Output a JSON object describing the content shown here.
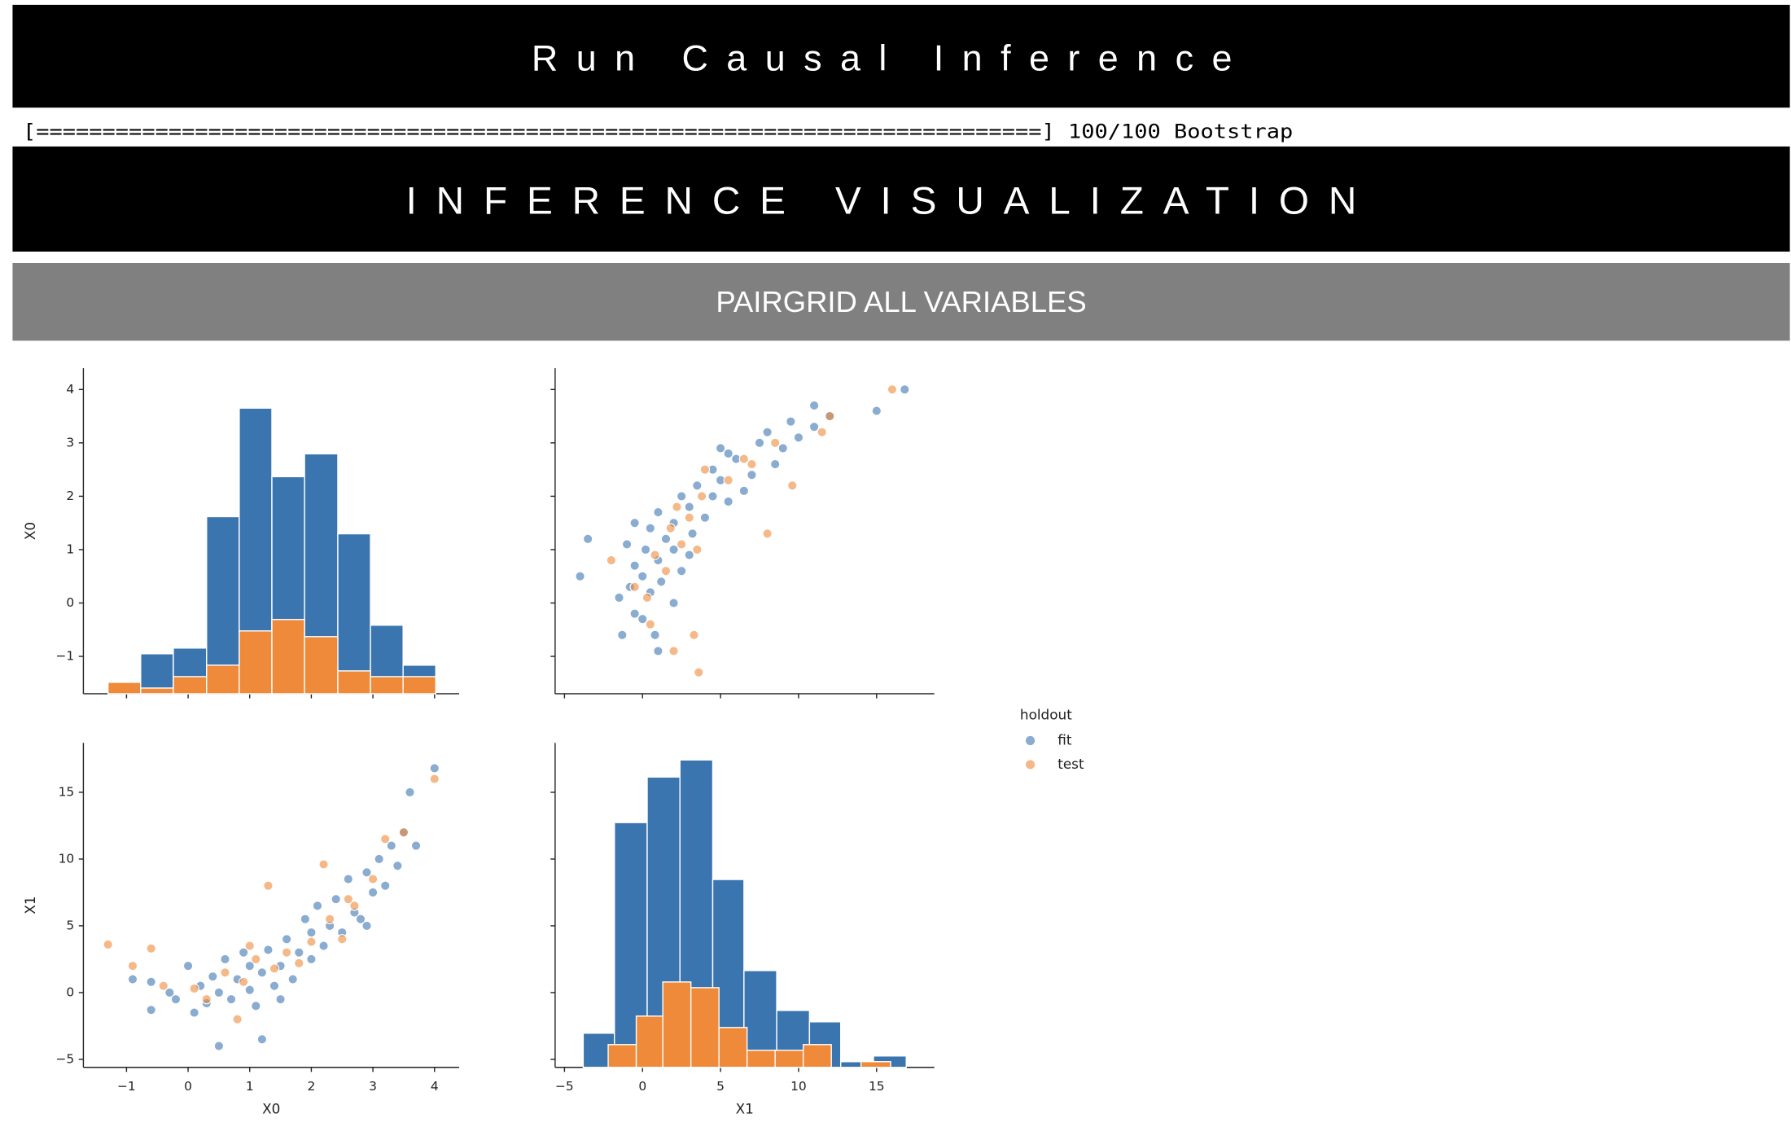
{
  "header": {
    "title": "Run Causal Inference",
    "progress": "[============================================================================] 100/100 Bootstrap",
    "section": "INFERENCE VISUALIZATION",
    "subsection": "PAIRGRID ALL VARIABLES"
  },
  "chart_data": {
    "type": "pairgrid",
    "variables": [
      {
        "name": "X0",
        "lim": [
          -1.7,
          4.4
        ],
        "ticks": [
          {
            "value": -1,
            "label": "−1"
          },
          0,
          1,
          2,
          3,
          4
        ]
      },
      {
        "name": "X1",
        "lim": [
          -5.6,
          18.7
        ],
        "ticks": [
          {
            "value": -5,
            "label": "−5"
          },
          0,
          5,
          10,
          15
        ]
      }
    ],
    "hist_ylim": [
      0,
      57
    ],
    "legend_title": "holdout",
    "legend_position": "right",
    "series": [
      {
        "name": "fit",
        "color": "#3a75b0",
        "x0": [
          -0.9,
          -0.6,
          -0.6,
          -0.3,
          -0.2,
          0.0,
          0.1,
          0.2,
          0.3,
          0.4,
          0.5,
          0.5,
          0.6,
          0.7,
          0.8,
          0.9,
          1.0,
          1.0,
          1.1,
          1.2,
          1.2,
          1.3,
          1.4,
          1.5,
          1.6,
          1.7,
          1.8,
          1.9,
          2.0,
          2.0,
          2.1,
          2.2,
          2.3,
          2.4,
          2.5,
          2.6,
          2.7,
          2.8,
          2.9,
          3.0,
          3.1,
          3.2,
          3.3,
          3.4,
          3.5,
          3.6,
          3.7,
          4.0,
          1.5,
          2.9
        ],
        "x1": [
          1.0,
          0.8,
          -1.3,
          0.0,
          -0.5,
          2.0,
          -1.5,
          0.5,
          -0.8,
          1.2,
          -4.0,
          0.0,
          2.5,
          -0.5,
          1.0,
          3.0,
          0.2,
          2.0,
          -1.0,
          -3.5,
          1.5,
          3.2,
          0.5,
          2.0,
          4.0,
          1.0,
          3.0,
          5.5,
          2.5,
          4.5,
          6.5,
          3.5,
          5.0,
          7.0,
          4.5,
          8.5,
          6.0,
          5.5,
          9.0,
          7.5,
          10.0,
          8.0,
          11.0,
          9.5,
          12.0,
          15.0,
          11.0,
          16.8,
          -0.5,
          5.0
        ],
        "hist": [
          {
            "bins": [
              -1.3,
              -0.77,
              -0.24,
              0.3,
              0.83,
              1.36,
              1.89,
              2.43,
              2.96,
              3.49,
              4.02
            ],
            "counts": [
              2,
              7,
              8,
              31,
              50,
              38,
              42,
              28,
              12,
              5
            ]
          },
          {
            "bins": [
              -3.8,
              -1.8,
              0.3,
              2.4,
              4.5,
              6.5,
              8.6,
              10.7,
              12.7,
              14.8,
              16.9
            ],
            "counts": [
              6,
              43,
              51,
              54,
              33,
              17,
              10,
              8,
              1,
              2
            ]
          }
        ]
      },
      {
        "name": "test",
        "color": "#ef8a3a",
        "x0": [
          -1.3,
          -0.9,
          -0.6,
          -0.4,
          0.1,
          0.3,
          0.6,
          0.8,
          0.9,
          1.1,
          1.3,
          1.4,
          1.6,
          1.8,
          2.0,
          2.2,
          2.3,
          2.5,
          2.7,
          3.0,
          3.2,
          3.5,
          4.0,
          1.0,
          2.6
        ],
        "x1": [
          3.6,
          2.0,
          3.3,
          0.5,
          0.3,
          -0.5,
          1.5,
          -2.0,
          0.8,
          2.5,
          8.0,
          1.8,
          3.0,
          2.2,
          3.8,
          9.6,
          5.5,
          4.0,
          6.5,
          8.5,
          11.5,
          12.0,
          16.0,
          3.5,
          7.0
        ],
        "hist": [
          {
            "bins": [
              -1.3,
              -0.77,
              -0.24,
              0.3,
              0.83,
              1.36,
              1.89,
              2.43,
              2.96,
              3.49,
              4.02
            ],
            "counts": [
              2,
              1,
              3,
              5,
              11,
              13,
              10,
              4,
              3,
              3
            ]
          },
          {
            "bins": [
              -2.2,
              -0.4,
              1.3,
              3.1,
              4.9,
              6.7,
              8.5,
              10.3,
              12.1,
              14.0,
              15.9
            ],
            "counts": [
              4,
              9,
              15,
              14,
              7,
              3,
              3,
              4,
              0,
              1
            ]
          }
        ]
      }
    ]
  }
}
